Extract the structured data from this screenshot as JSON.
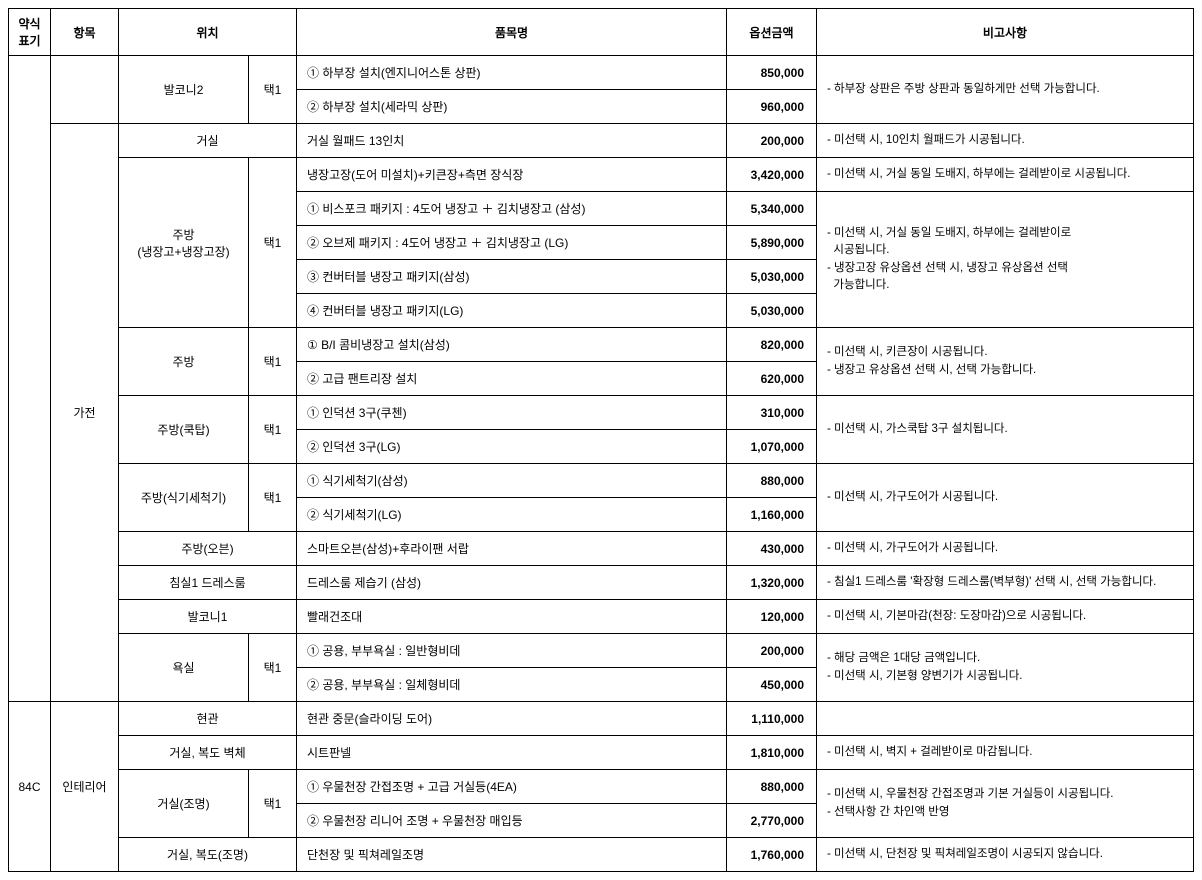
{
  "headers": {
    "h1": "약식\n표기",
    "h2": "항목",
    "h3": "위치",
    "h4": "품목명",
    "h5": "옵션금액",
    "h6": "비고사항"
  },
  "t": {
    "blank": "",
    "code84c": "84C",
    "cat_balcony2": "발코니2",
    "cat_living": "거실",
    "cat_kitchenFridge": "주방\n(냉장고+냉장고장)",
    "cat_kitchen": "주방",
    "cat_kitchenCook": "주방(쿡탑)",
    "cat_kitchenDish": "주방(식기세척기)",
    "cat_kitchenOven": "주방(오븐)",
    "cat_bedroomDress": "침실1 드레스룸",
    "cat_balcony1": "발코니1",
    "cat_bath": "욕실",
    "cat_entrance": "현관",
    "cat_livingHallWall": "거실, 복도 벽체",
    "cat_livingLight": "거실(조명)",
    "cat_livingHallLight": "거실, 복도(조명)",
    "sec_gajeon": "가전",
    "sec_interior": "인테리어",
    "pick1": "택1"
  },
  "r": [
    {
      "item": "① 하부장 설치(엔지니어스톤 상판)",
      "price": "850,000"
    },
    {
      "item": "② 하부장 설치(세라믹 상판)",
      "price": "960,000"
    },
    {
      "item": "거실 월패드 13인치",
      "price": "200,000"
    },
    {
      "item": "냉장고장(도어 미설치)+키큰장+측면 장식장",
      "price": "3,420,000"
    },
    {
      "item": "① 비스포크 패키지 : 4도어 냉장고 ＋ 김치냉장고 (삼성)",
      "price": "5,340,000"
    },
    {
      "item": "② 오브제 패키지 : 4도어 냉장고 ＋ 김치냉장고 (LG)",
      "price": "5,890,000"
    },
    {
      "item": "③ 컨버터블 냉장고 패키지(삼성)",
      "price": "5,030,000"
    },
    {
      "item": "④ 컨버터블 냉장고 패키지(LG)",
      "price": "5,030,000"
    },
    {
      "item": "① B/I 콤비냉장고 설치(삼성)",
      "price": "820,000"
    },
    {
      "item": "② 고급 팬트리장 설치",
      "price": "620,000"
    },
    {
      "item": "① 인덕션 3구(쿠첸)",
      "price": "310,000"
    },
    {
      "item": "② 인덕션 3구(LG)",
      "price": "1,070,000"
    },
    {
      "item": "① 식기세척기(삼성)",
      "price": "880,000"
    },
    {
      "item": "② 식기세척기(LG)",
      "price": "1,160,000"
    },
    {
      "item": "스마트오븐(삼성)+후라이팬 서랍",
      "price": "430,000"
    },
    {
      "item": "드레스룸 제습기 (삼성)",
      "price": "1,320,000"
    },
    {
      "item": "빨래건조대",
      "price": "120,000"
    },
    {
      "item": "① 공용, 부부욕실 : 일반형비데",
      "price": "200,000"
    },
    {
      "item": "② 공용, 부부욕실 : 일체형비데",
      "price": "450,000"
    },
    {
      "item": "현관 중문(슬라이딩 도어)",
      "price": "1,110,000"
    },
    {
      "item": "시트판넬",
      "price": "1,810,000"
    },
    {
      "item": "① 우물천장 간접조명 + 고급 거실등(4EA)",
      "price": "880,000"
    },
    {
      "item": "② 우물천장 리니어 조명 + 우물천장 매입등",
      "price": "2,770,000"
    },
    {
      "item": "단천장 및 픽쳐레일조명",
      "price": "1,760,000"
    }
  ],
  "n": {
    "n0": "- 하부장 상판은 주방 상판과 동일하게만 선택 가능합니다.",
    "n1": "- 미선택 시, 10인치 월패드가 시공됩니다.",
    "n2": "- 미선택 시, 거실 동일 도배지, 하부에는 걸레받이로 시공됩니다.",
    "n3a": "- 미선택 시, 거실 동일 도배지, 하부에는 걸레받이로",
    "n3b": "  시공됩니다.",
    "n3c": "- 냉장고장 유상옵션 선택 시, 냉장고 유상옵션 선택",
    "n3d": "  가능합니다.",
    "n4a": "- 미선택 시, 키큰장이 시공됩니다.",
    "n4b": "- 냉장고 유상옵션 선택 시, 선택 가능합니다.",
    "n5": "- 미선택 시, 가스쿡탑 3구 설치됩니다.",
    "n6": "- 미선택 시, 가구도어가 시공됩니다.",
    "n7": "- 미선택 시, 가구도어가 시공됩니다.",
    "n8": "- 침실1 드레스룸 '확장형 드레스룸(벽부형)' 선택 시, 선택 가능합니다.",
    "n9": "- 미선택 시, 기본마감(천장: 도장마감)으로 시공됩니다.",
    "n10a": "- 해당 금액은 1대당 금액입니다.",
    "n10b": "- 미선택 시, 기본형 양변기가 시공됩니다.",
    "n12": "- 미선택 시, 벽지 + 걸레받이로 마감됩니다.",
    "n13a": "- 미선택 시, 우물천장 간접조명과 기본 거실등이 시공됩니다.",
    "n13b": "- 선택사항 간 차인액 반영",
    "n14": "- 미선택 시, 단천장 및 픽쳐레일조명이 시공되지 않습니다."
  }
}
